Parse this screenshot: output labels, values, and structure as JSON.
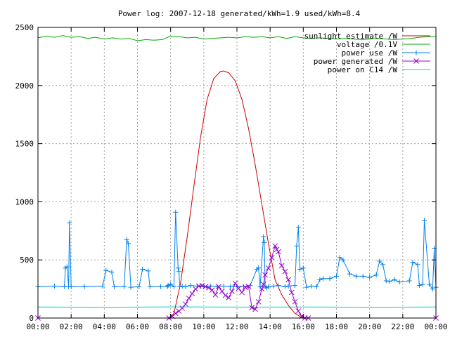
{
  "chart_data": {
    "type": "line",
    "title": "Power log: 2007-12-18 generated/kWh=1.9 used/kWh=8.4",
    "xlabel": "",
    "ylabel": "",
    "xlim": [
      0,
      24
    ],
    "ylim": [
      0,
      2500
    ],
    "grid": true,
    "legend_position": "top-right",
    "x_ticks": [
      "00:00",
      "02:00",
      "04:00",
      "06:00",
      "08:00",
      "10:00",
      "12:00",
      "14:00",
      "16:00",
      "18:00",
      "20:00",
      "22:00",
      "00:00"
    ],
    "y_ticks": [
      "0",
      "500",
      "1000",
      "1500",
      "2000",
      "2500"
    ],
    "series": [
      {
        "name": "sunlight estimate /W",
        "color": "#cc0000",
        "marker": "none",
        "x": [
          0,
          7.9,
          8.2,
          8.6,
          9.0,
          9.4,
          9.8,
          10.2,
          10.6,
          11.0,
          11.2,
          11.5,
          11.9,
          12.3,
          12.7,
          13.1,
          13.5,
          13.9,
          14.3,
          14.7,
          15.1,
          15.5,
          15.9,
          16.1,
          24
        ],
        "values": [
          0,
          0,
          40,
          300,
          700,
          1130,
          1550,
          1880,
          2060,
          2120,
          2125,
          2110,
          2040,
          1880,
          1630,
          1320,
          980,
          640,
          330,
          200,
          110,
          40,
          5,
          0,
          0
        ]
      },
      {
        "name": "voltage /0.1V",
        "color": "#00aa00",
        "marker": "none",
        "x": [
          0,
          0.5,
          1,
          1.5,
          2,
          2.5,
          3,
          3.5,
          4,
          4.5,
          5,
          5.5,
          6,
          6.5,
          7,
          7.5,
          8,
          8.5,
          9,
          9.5,
          10,
          10.5,
          11,
          11.5,
          12,
          12.5,
          13,
          13.5,
          14,
          14.5,
          15,
          15.5,
          16,
          16.5,
          17,
          17.5,
          18,
          18.5,
          19,
          19.5,
          20,
          20.5,
          21,
          21.5,
          22,
          22.5,
          23,
          23.5,
          24
        ],
        "values": [
          2410,
          2425,
          2415,
          2430,
          2415,
          2420,
          2405,
          2415,
          2400,
          2410,
          2400,
          2405,
          2385,
          2395,
          2390,
          2395,
          2425,
          2420,
          2410,
          2415,
          2400,
          2405,
          2410,
          2415,
          2410,
          2420,
          2415,
          2420,
          2410,
          2420,
          2405,
          2420,
          2410,
          2405,
          2410,
          2405,
          2400,
          2405,
          2400,
          2395,
          2400,
          2405,
          2400,
          2395,
          2400,
          2405,
          2415,
          2420,
          2420
        ]
      },
      {
        "name": "power use /W",
        "color": "#0080ee",
        "marker": "+",
        "x": [
          0,
          1,
          1.6,
          1.65,
          1.75,
          1.85,
          1.9,
          2.0,
          2.8,
          3.9,
          4.1,
          4.45,
          4.6,
          5.2,
          5.35,
          5.45,
          5.6,
          6.1,
          6.3,
          6.65,
          6.75,
          7.4,
          7.8,
          7.85,
          8.0,
          8.2,
          8.3,
          8.45,
          8.5,
          8.55,
          8.7,
          8.9,
          9.2,
          9.6,
          10.0,
          10.4,
          10.8,
          11.2,
          11.6,
          12.0,
          12.4,
          12.8,
          13.2,
          13.3,
          13.4,
          13.6,
          13.65,
          13.7,
          13.8,
          13.9,
          14.2,
          14.5,
          14.9,
          15.1,
          15.5,
          15.6,
          15.7,
          15.8,
          16.0,
          16.2,
          16.5,
          16.8,
          17.0,
          17.2,
          17.6,
          18.0,
          18.2,
          18.4,
          18.8,
          19.2,
          19.6,
          20.0,
          20.4,
          20.6,
          20.8,
          21.0,
          21.2,
          21.5,
          21.8,
          22.4,
          22.6,
          22.9,
          23.0,
          23.2,
          23.3,
          23.6,
          23.8,
          23.9,
          24
        ],
        "values": [
          270,
          275,
          270,
          430,
          440,
          270,
          820,
          270,
          270,
          275,
          410,
          395,
          270,
          270,
          675,
          640,
          265,
          270,
          420,
          405,
          270,
          270,
          270,
          280,
          290,
          270,
          910,
          430,
          400,
          270,
          275,
          270,
          280,
          275,
          270,
          275,
          270,
          275,
          270,
          270,
          270,
          280,
          420,
          430,
          270,
          700,
          650,
          270,
          260,
          270,
          275,
          280,
          270,
          275,
          280,
          620,
          780,
          420,
          430,
          265,
          275,
          270,
          330,
          340,
          340,
          360,
          520,
          500,
          380,
          360,
          360,
          350,
          370,
          490,
          460,
          320,
          315,
          330,
          310,
          320,
          480,
          460,
          280,
          290,
          840,
          290,
          250,
          600,
          265
        ]
      },
      {
        "name": "power generated /W",
        "color": "#9900cc",
        "marker": "x",
        "x": [
          0,
          7.9,
          8.1,
          8.3,
          8.5,
          8.7,
          8.9,
          9.1,
          9.3,
          9.5,
          9.7,
          9.9,
          10.1,
          10.3,
          10.5,
          10.7,
          10.9,
          11.1,
          11.3,
          11.5,
          11.7,
          11.9,
          12.1,
          12.3,
          12.5,
          12.7,
          12.9,
          13.1,
          13.3,
          13.5,
          13.6,
          13.7,
          13.9,
          14.1,
          14.3,
          14.4,
          14.5,
          14.7,
          14.9,
          15.1,
          15.3,
          15.5,
          15.7,
          15.9,
          16.1,
          16.3,
          24
        ],
        "values": [
          0,
          0,
          15,
          40,
          60,
          85,
          120,
          170,
          210,
          250,
          275,
          280,
          270,
          260,
          240,
          200,
          270,
          230,
          195,
          175,
          230,
          300,
          255,
          220,
          265,
          270,
          90,
          75,
          140,
          250,
          290,
          370,
          430,
          520,
          620,
          590,
          570,
          450,
          400,
          330,
          220,
          140,
          60,
          15,
          0,
          0,
          0
        ]
      },
      {
        "name": "power on C14 /W",
        "color": "#00cccc",
        "marker": "none",
        "x": [
          0,
          4,
          8,
          12,
          16,
          20,
          24
        ],
        "values": [
          95,
          93,
          96,
          94,
          95,
          93,
          95
        ]
      }
    ]
  }
}
